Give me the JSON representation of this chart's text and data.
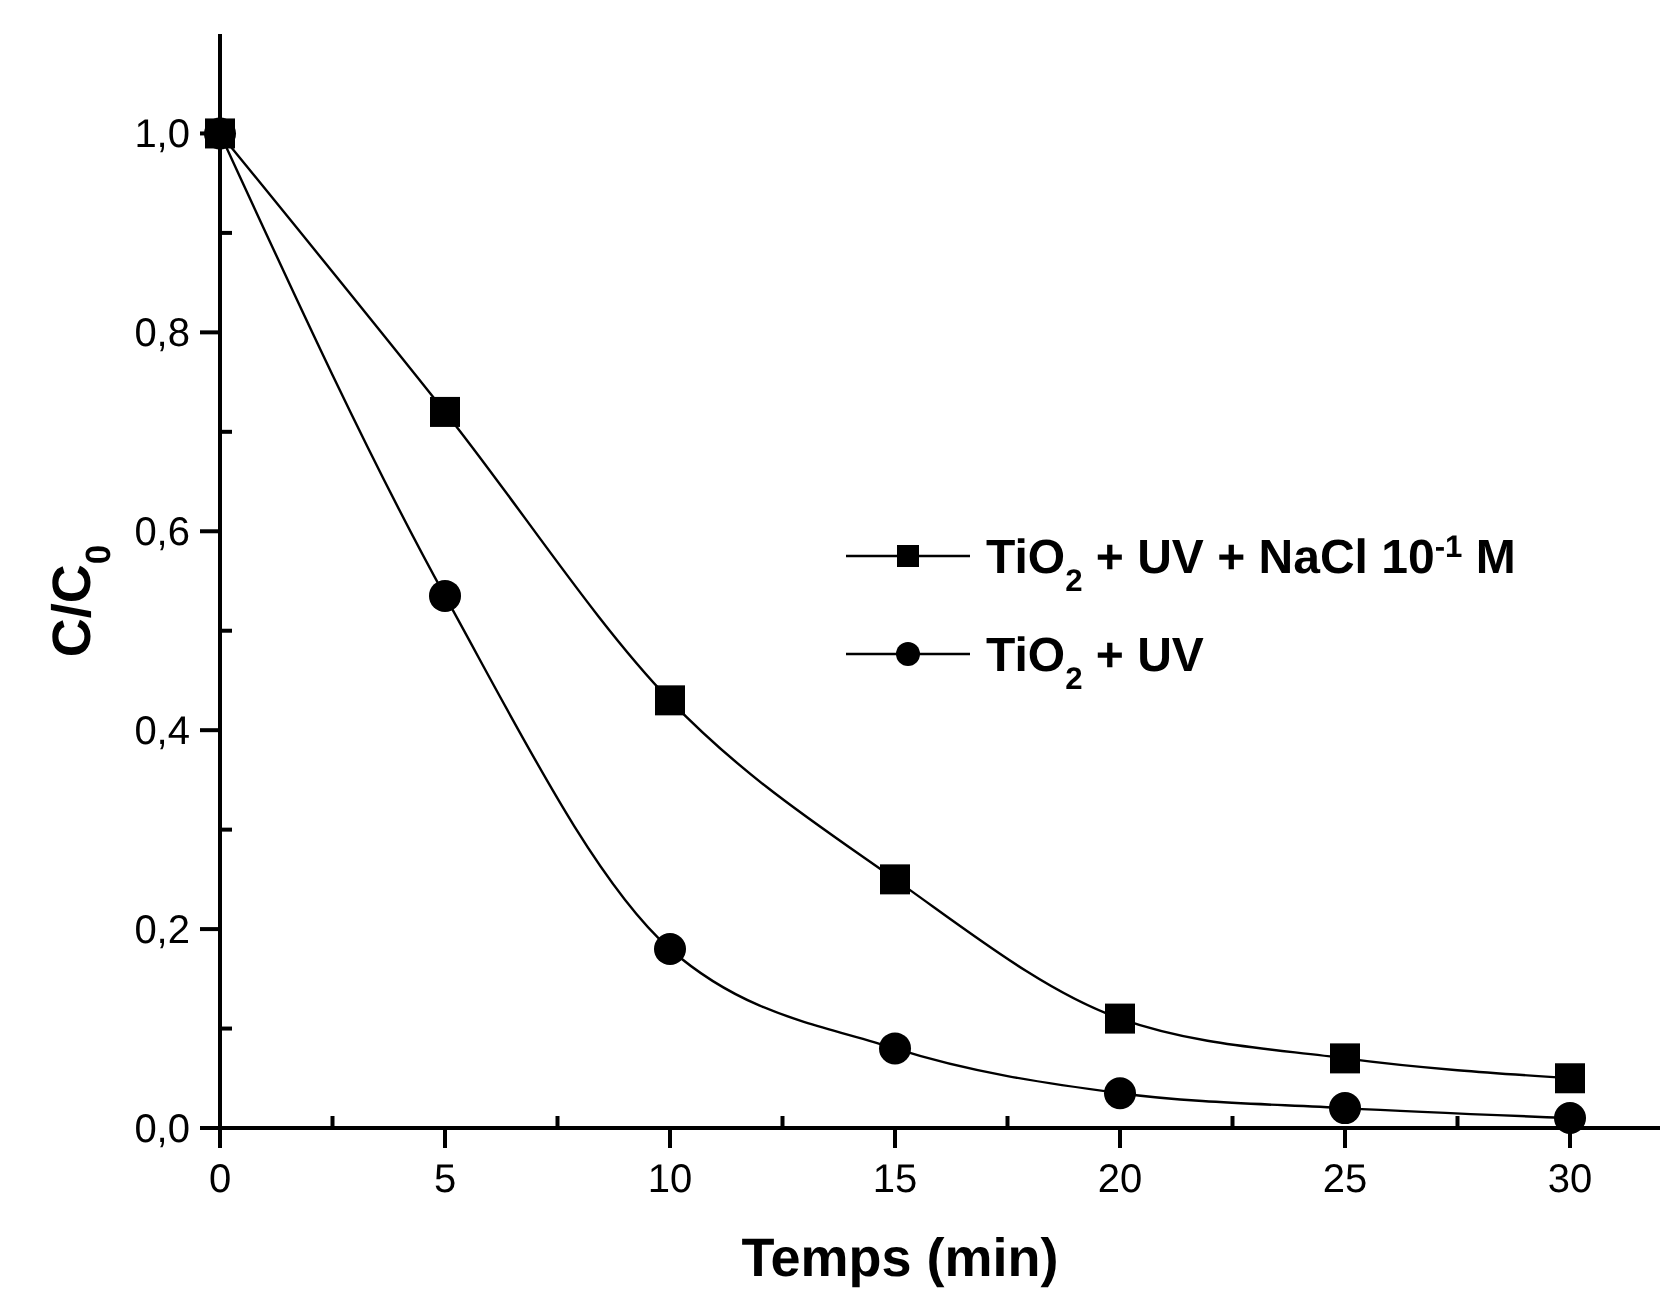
{
  "chart_data": {
    "type": "line",
    "xlabel": "Temps (min)",
    "ylabel": "C/C$_{0}$",
    "xlim": [
      0,
      32
    ],
    "xticks": [
      0,
      {
        "value": 2.5,
        "label": null
      },
      5,
      {
        "value": 7.5,
        "label": null
      },
      10,
      {
        "value": 12.5,
        "label": null
      },
      15,
      {
        "value": 17.5,
        "label": null
      },
      20,
      {
        "value": 22.5,
        "label": null
      },
      25,
      {
        "value": 27.5,
        "label": null
      },
      30
    ],
    "ylim": [
      0,
      1.1
    ],
    "yticks": [
      {
        "value": 0,
        "label": "0,0"
      },
      {
        "value": 0.1,
        "label": null
      },
      {
        "value": 0.2,
        "label": "0,2"
      },
      {
        "value": 0.3,
        "label": null
      },
      {
        "value": 0.4,
        "label": "0,4"
      },
      {
        "value": 0.5,
        "label": null
      },
      {
        "value": 0.6,
        "label": "0,6"
      },
      {
        "value": 0.7,
        "label": null
      },
      {
        "value": 0.8,
        "label": "0,8"
      },
      {
        "value": 0.9,
        "label": null
      },
      {
        "value": 1.0,
        "label": "1,0"
      }
    ],
    "x": [
      0,
      5,
      10,
      15,
      20,
      25,
      30
    ],
    "series": [
      {
        "name": "TiO$_{2}$ + UV + NaCl 10$^{-1}$ M",
        "color": "#000000",
        "marker": "square",
        "values": [
          1.0,
          0.72,
          0.43,
          0.25,
          0.11,
          0.07,
          0.05
        ]
      },
      {
        "name": "TiO$_{2}$ + UV",
        "color": "#000000",
        "marker": "circle",
        "values": [
          1.0,
          0.535,
          0.18,
          0.08,
          0.035,
          0.02,
          0.01
        ]
      }
    ],
    "legend": "right",
    "grid": false,
    "line_style": "solid"
  }
}
